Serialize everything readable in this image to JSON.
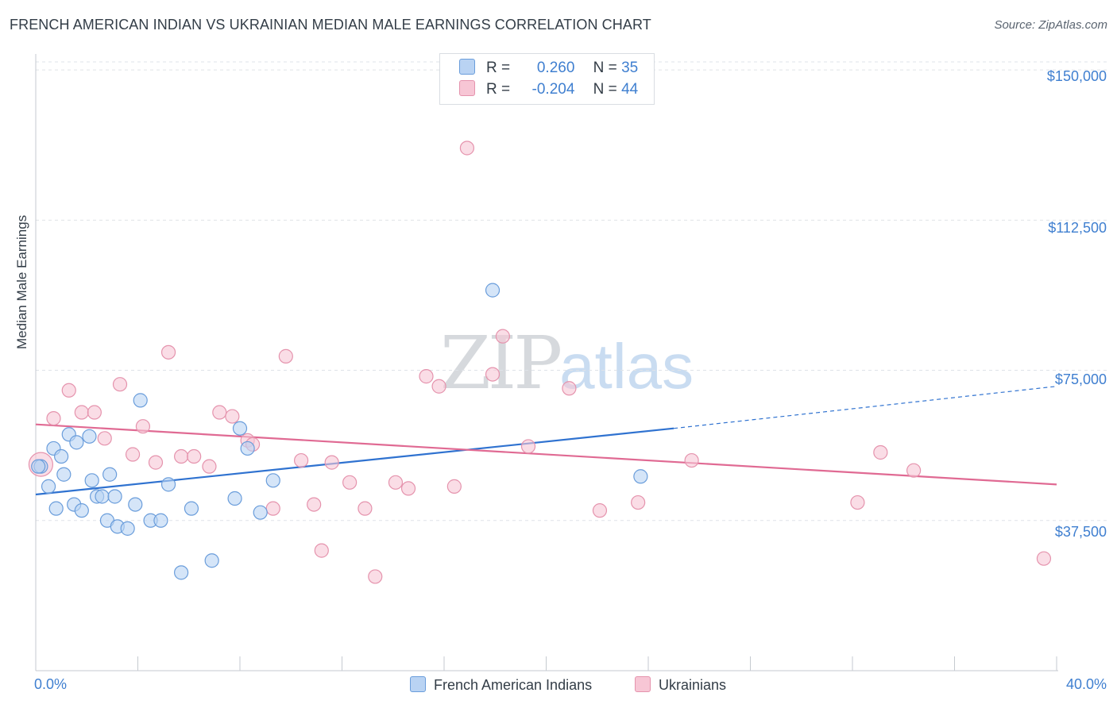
{
  "title": "FRENCH AMERICAN INDIAN VS UKRAINIAN MEDIAN MALE EARNINGS CORRELATION CHART",
  "source": "Source: ZipAtlas.com",
  "watermark": {
    "zip": "ZIP",
    "atlas": "atlas"
  },
  "legend": {
    "series1": {
      "r_label": "R =",
      "r_value": "0.260",
      "n_label": "N =",
      "n_value": "35"
    },
    "series2": {
      "r_label": "R =",
      "r_value": "-0.204",
      "n_label": "N =",
      "n_value": "44"
    }
  },
  "colors": {
    "blue_fill": "#b9d3f3",
    "blue_stroke": "#6a9ddb",
    "blue_line": "#2f72d0",
    "pink_fill": "#f7c6d5",
    "pink_stroke": "#e593ad",
    "pink_line": "#e06a93",
    "axis_text": "#3f7fd0"
  },
  "chart_data": {
    "type": "scatter",
    "title": "FRENCH AMERICAN INDIAN VS UKRAINIAN MEDIAN MALE EARNINGS CORRELATION CHART",
    "xlabel": "",
    "ylabel": "Median Male Earnings",
    "xlim": [
      0,
      40
    ],
    "ylim": [
      0,
      152000
    ],
    "x_tick_labels": [
      "0.0%",
      "40.0%"
    ],
    "y_ticks": [
      37500,
      75000,
      112500,
      150000
    ],
    "y_tick_labels": [
      "$37,500",
      "$75,000",
      "$112,500",
      "$150,000"
    ],
    "grid": true,
    "legend_position": "top-center",
    "series": [
      {
        "name": "French American Indians",
        "color": "#6a9ddb",
        "points": [
          [
            0.2,
            51000
          ],
          [
            0.5,
            46000
          ],
          [
            0.7,
            55500
          ],
          [
            0.8,
            40500
          ],
          [
            1.0,
            53500
          ],
          [
            1.1,
            49000
          ],
          [
            1.3,
            59000
          ],
          [
            1.5,
            41500
          ],
          [
            1.6,
            57000
          ],
          [
            1.8,
            40000
          ],
          [
            2.1,
            58500
          ],
          [
            2.2,
            47500
          ],
          [
            2.4,
            43500
          ],
          [
            2.6,
            43500
          ],
          [
            2.8,
            37500
          ],
          [
            2.9,
            49000
          ],
          [
            3.1,
            43500
          ],
          [
            3.2,
            36000
          ],
          [
            3.6,
            35500
          ],
          [
            3.9,
            41500
          ],
          [
            4.1,
            67500
          ],
          [
            4.5,
            37500
          ],
          [
            4.9,
            37500
          ],
          [
            5.2,
            46500
          ],
          [
            5.7,
            24500
          ],
          [
            6.1,
            40500
          ],
          [
            6.9,
            27500
          ],
          [
            7.8,
            43000
          ],
          [
            8.0,
            60500
          ],
          [
            8.3,
            55500
          ],
          [
            8.8,
            39500
          ],
          [
            9.3,
            47500
          ],
          [
            17.9,
            95000
          ],
          [
            23.7,
            48500
          ],
          [
            0.1,
            51000
          ]
        ]
      },
      {
        "name": "Ukrainians",
        "color": "#e593ad",
        "points": [
          [
            0.2,
            51500
          ],
          [
            0.7,
            63000
          ],
          [
            1.3,
            70000
          ],
          [
            1.8,
            64500
          ],
          [
            2.3,
            64500
          ],
          [
            2.7,
            58000
          ],
          [
            3.3,
            71500
          ],
          [
            3.8,
            54000
          ],
          [
            4.2,
            61000
          ],
          [
            4.7,
            52000
          ],
          [
            5.2,
            79500
          ],
          [
            5.7,
            53500
          ],
          [
            6.2,
            53500
          ],
          [
            6.8,
            51000
          ],
          [
            7.2,
            64500
          ],
          [
            7.7,
            63500
          ],
          [
            8.3,
            57500
          ],
          [
            8.5,
            56500
          ],
          [
            9.3,
            40500
          ],
          [
            9.8,
            78500
          ],
          [
            10.4,
            52500
          ],
          [
            10.9,
            41500
          ],
          [
            11.2,
            30000
          ],
          [
            11.6,
            52000
          ],
          [
            12.3,
            47000
          ],
          [
            12.9,
            40500
          ],
          [
            13.3,
            23500
          ],
          [
            14.1,
            47000
          ],
          [
            14.6,
            45500
          ],
          [
            15.3,
            73500
          ],
          [
            15.8,
            71000
          ],
          [
            16.4,
            46000
          ],
          [
            16.9,
            130500
          ],
          [
            17.9,
            74000
          ],
          [
            18.3,
            83500
          ],
          [
            19.3,
            56000
          ],
          [
            20.9,
            70500
          ],
          [
            22.1,
            40000
          ],
          [
            23.6,
            42000
          ],
          [
            25.7,
            52500
          ],
          [
            32.2,
            42000
          ],
          [
            33.1,
            54500
          ],
          [
            34.4,
            50000
          ],
          [
            39.5,
            28000
          ]
        ]
      }
    ],
    "trendlines": [
      {
        "series": "French American Indians",
        "x": [
          0,
          25
        ],
        "y": [
          44000,
          60500
        ],
        "dashed_extension_to": [
          40,
          71000
        ]
      },
      {
        "series": "Ukrainians",
        "x": [
          0,
          40
        ],
        "y": [
          61500,
          46500
        ]
      }
    ]
  },
  "bottom_legend": [
    "French American Indians",
    "Ukrainians"
  ]
}
